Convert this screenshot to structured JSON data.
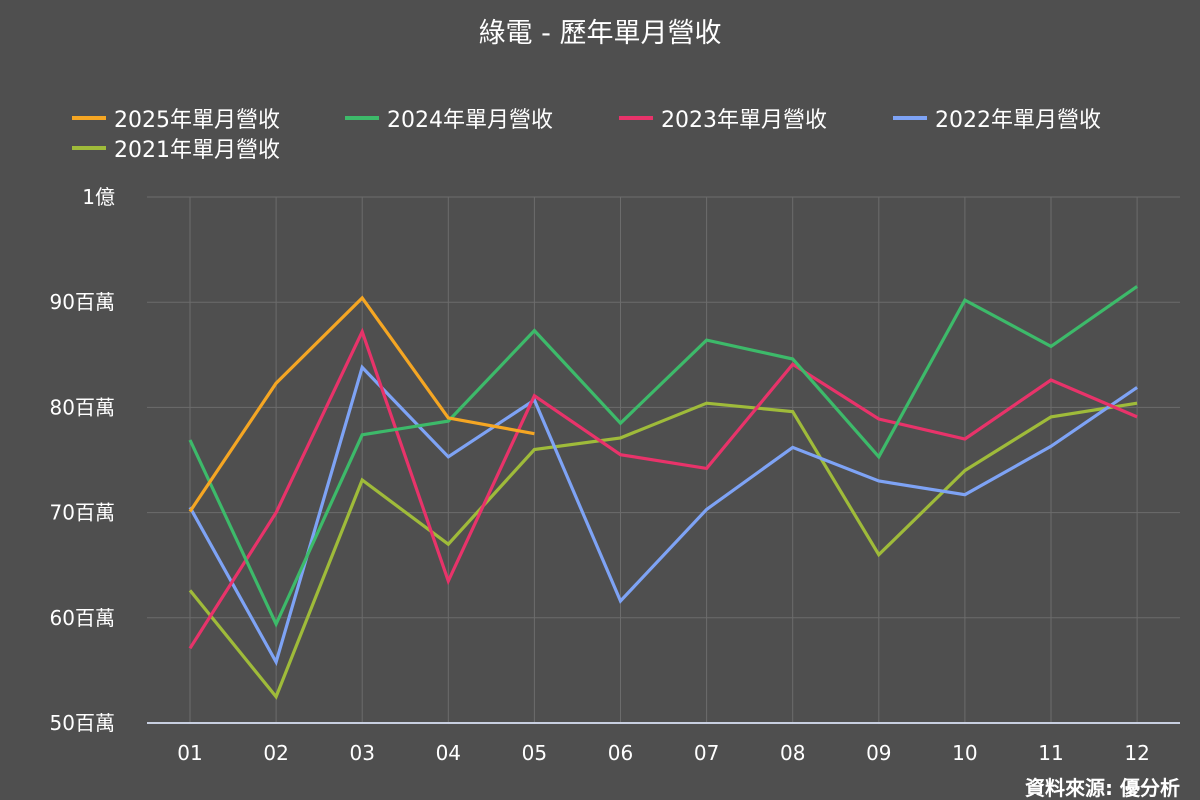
{
  "chart_data": {
    "type": "line",
    "title": "綠電 - 歷年單月營收",
    "source": "資料來源: 優分析",
    "categories": [
      "01",
      "02",
      "03",
      "04",
      "05",
      "06",
      "07",
      "08",
      "09",
      "10",
      "11",
      "12"
    ],
    "ylim": [
      50000000,
      100000000
    ],
    "yticks": [
      {
        "value": 100000000,
        "label": "1億"
      },
      {
        "value": 90000000,
        "label": "90百萬"
      },
      {
        "value": 80000000,
        "label": "80百萬"
      },
      {
        "value": 70000000,
        "label": "70百萬"
      },
      {
        "value": 60000000,
        "label": "60百萬"
      },
      {
        "value": 50000000,
        "label": "50百萬"
      }
    ],
    "grid": true,
    "legend_position": "top",
    "series": [
      {
        "name": "2025年單月營收",
        "color": "#f5a623",
        "values": [
          70100000,
          82300000,
          90400000,
          79000000,
          77500000,
          null,
          null,
          null,
          null,
          null,
          null,
          null
        ]
      },
      {
        "name": "2024年單月營收",
        "color": "#3dba6a",
        "values": [
          76900000,
          59400000,
          77400000,
          78700000,
          87300000,
          78500000,
          86400000,
          84600000,
          75300000,
          90200000,
          85800000,
          91500000
        ]
      },
      {
        "name": "2023年單月營收",
        "color": "#e8336a",
        "values": [
          57100000,
          70000000,
          87200000,
          63500000,
          81100000,
          75500000,
          74200000,
          84100000,
          78900000,
          77000000,
          82600000,
          79100000
        ]
      },
      {
        "name": "2022年單月營收",
        "color": "#7ea3f5",
        "values": [
          70500000,
          55800000,
          83800000,
          75300000,
          80700000,
          61600000,
          70300000,
          76200000,
          73000000,
          71700000,
          76300000,
          81900000
        ]
      },
      {
        "name": "2021年單月營收",
        "color": "#9fbb3a",
        "values": [
          62600000,
          52500000,
          73100000,
          67000000,
          76000000,
          77100000,
          80400000,
          79600000,
          66000000,
          74000000,
          79100000,
          80400000
        ]
      }
    ]
  }
}
